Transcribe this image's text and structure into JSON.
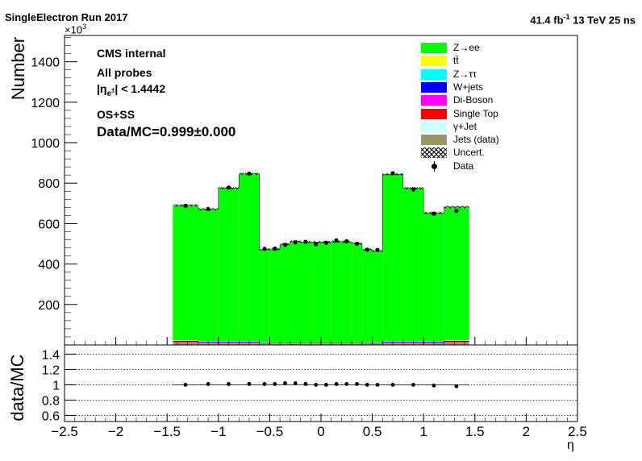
{
  "header": {
    "left": "SingleElectron Run 2017",
    "lumi_value": "41.4 fb",
    "lumi_sup": "-1",
    "energy": "13 TeV 25 ns"
  },
  "annotations": {
    "cms": "CMS internal",
    "probes": "All probes",
    "eta_cut_prefix": "|η",
    "eta_cut_sub": "e",
    "eta_cut_sup": "±",
    "eta_cut_suffix": "| < 1.4442",
    "charge": "OS+SS",
    "ratio": "Data/MC=0.999±0.000"
  },
  "axes": {
    "y_exponent_prefix": "×10",
    "y_exponent_sup": "3",
    "y_label": "Number",
    "ratio_y_label": "data/MC",
    "x_label": "η"
  },
  "legend": [
    {
      "label": "Z→ee",
      "color": "#00ff00",
      "style": "fill"
    },
    {
      "label": "tt̄",
      "color": "#ffff00",
      "style": "fill"
    },
    {
      "label": "Z→ττ",
      "color": "#00ffff",
      "style": "fill"
    },
    {
      "label": "W+jets",
      "color": "#0000ff",
      "style": "fill"
    },
    {
      "label": "Di-Boson",
      "color": "#ff00ff",
      "style": "fill"
    },
    {
      "label": "Single Top",
      "color": "#ff0000",
      "style": "fill"
    },
    {
      "label": "γ+Jet",
      "color": "#ccffff",
      "style": "fill"
    },
    {
      "label": "Jets (data)",
      "color": "#999966",
      "style": "fill"
    },
    {
      "label": "Uncert.",
      "color": "#000000",
      "style": "hatch"
    },
    {
      "label": "Data",
      "color": "#000000",
      "style": "marker"
    }
  ],
  "chart_data": {
    "type": "bar",
    "stacked": true,
    "x_unit_label": "η",
    "y_label": "Number",
    "y_scale_factor": 1000,
    "xlim": [
      -2.5,
      2.5
    ],
    "ylim": [
      0,
      1530
    ],
    "x_ticks": [
      "−2.5",
      "−2",
      "−1.5",
      "−1",
      "−0.5",
      "0",
      "0.5",
      "1",
      "1.5",
      "2",
      "2.5"
    ],
    "x_tick_values": [
      -2.5,
      -2,
      -1.5,
      -1,
      -0.5,
      0,
      0.5,
      1,
      1.5,
      2,
      2.5
    ],
    "y_ticks": [
      "200",
      "400",
      "600",
      "800",
      "1000",
      "1200",
      "1400"
    ],
    "y_tick_values": [
      200,
      400,
      600,
      800,
      1000,
      1200,
      1400
    ],
    "bin_edges": [
      -1.4442,
      -1.2,
      -1.0,
      -0.8,
      -0.6,
      -0.5,
      -0.4,
      -0.3,
      -0.2,
      -0.1,
      0.0,
      0.1,
      0.2,
      0.3,
      0.4,
      0.5,
      0.6,
      0.8,
      1.0,
      1.2,
      1.4442
    ],
    "series": [
      {
        "name": "Jets (data)",
        "color": "#999966",
        "values": [
          12,
          10,
          10,
          10,
          8,
          7,
          7,
          7,
          7,
          7,
          7,
          7,
          7,
          7,
          8,
          8,
          10,
          10,
          10,
          12
        ]
      },
      {
        "name": "γ+Jet",
        "color": "#ccffff",
        "values": [
          1,
          1,
          1,
          1,
          1,
          1,
          1,
          1,
          1,
          1,
          1,
          1,
          1,
          1,
          1,
          1,
          1,
          1,
          1,
          1
        ]
      },
      {
        "name": "Single Top",
        "color": "#ff0000",
        "values": [
          1,
          1,
          1,
          1,
          1,
          1,
          1,
          1,
          1,
          1,
          1,
          1,
          1,
          1,
          1,
          1,
          1,
          1,
          1,
          1
        ]
      },
      {
        "name": "Di-Boson",
        "color": "#ff00ff",
        "values": [
          2,
          2,
          2,
          2,
          1,
          1,
          1,
          1,
          1,
          1,
          1,
          1,
          1,
          1,
          1,
          1,
          2,
          2,
          2,
          2
        ]
      },
      {
        "name": "W+jets",
        "color": "#0000ff",
        "values": [
          4,
          3,
          3,
          3,
          2,
          2,
          2,
          2,
          2,
          2,
          2,
          2,
          2,
          2,
          2,
          2,
          3,
          3,
          3,
          4
        ]
      },
      {
        "name": "Z→ττ",
        "color": "#00ffff",
        "values": [
          1,
          1,
          1,
          1,
          1,
          1,
          1,
          1,
          1,
          1,
          1,
          1,
          1,
          1,
          1,
          1,
          1,
          1,
          1,
          1
        ]
      },
      {
        "name": "tt̄",
        "color": "#ffff00",
        "values": [
          3,
          2,
          2,
          2,
          1,
          1,
          1,
          1,
          1,
          1,
          1,
          1,
          1,
          1,
          1,
          1,
          2,
          2,
          2,
          3
        ]
      },
      {
        "name": "Z→ee",
        "color": "#00ff00",
        "values": [
          666,
          651,
          756,
          826,
          457,
          460,
          484,
          498,
          495,
          494,
          495,
          497,
          496,
          488,
          456,
          450,
          824,
          755,
          633,
          658
        ]
      }
    ],
    "data_points": {
      "name": "Data",
      "x": [
        -1.32,
        -1.1,
        -0.9,
        -0.7,
        -0.55,
        -0.45,
        -0.35,
        -0.25,
        -0.15,
        -0.05,
        0.05,
        0.15,
        0.25,
        0.35,
        0.45,
        0.55,
        0.7,
        0.9,
        1.1,
        1.32
      ],
      "y": [
        688,
        672,
        778,
        847,
        475,
        476,
        495,
        507,
        510,
        498,
        505,
        517,
        513,
        500,
        471,
        470,
        849,
        769,
        649,
        663
      ]
    },
    "ratio": {
      "y_label": "data/MC",
      "ylim": [
        0.52,
        1.52
      ],
      "y_ticks": [
        "0.6",
        "0.8",
        "1",
        "1.2",
        "1.4"
      ],
      "y_tick_values": [
        0.6,
        0.8,
        1.0,
        1.2,
        1.4
      ],
      "values": [
        1.0,
        1.01,
        1.01,
        1.01,
        1.01,
        1.01,
        1.02,
        1.02,
        1.01,
        1.0,
        1.0,
        1.01,
        1.01,
        1.01,
        1.0,
        1.0,
        1.0,
        1.0,
        0.99,
        0.98
      ]
    }
  }
}
